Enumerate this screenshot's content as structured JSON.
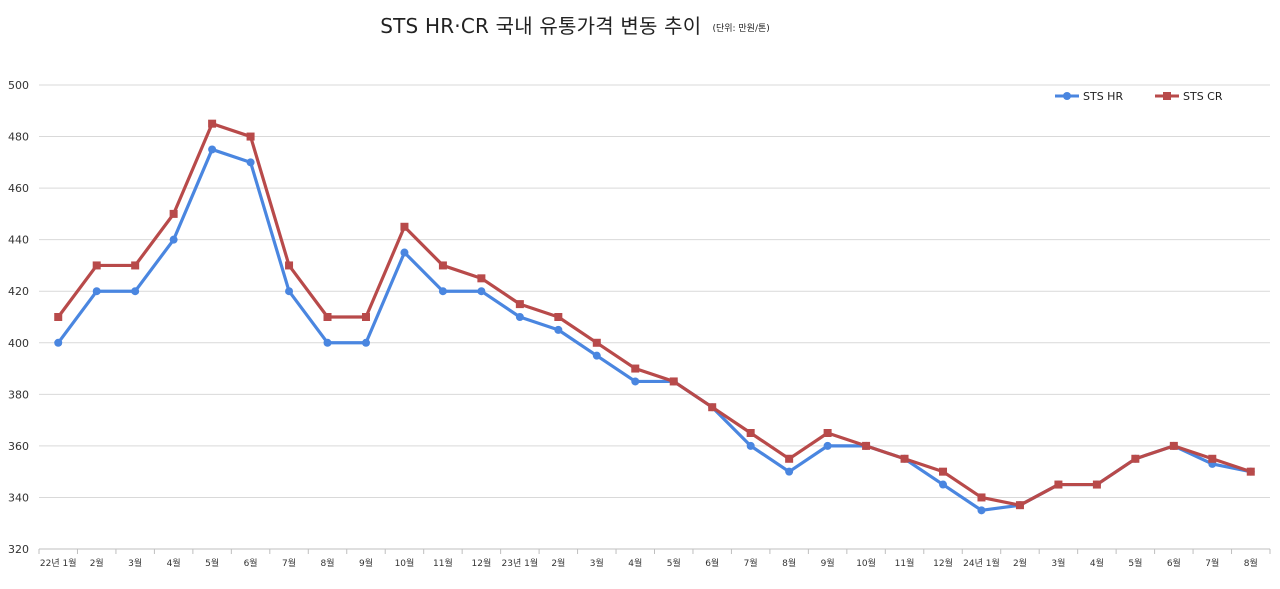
{
  "chart_data": {
    "type": "line",
    "title": "STS HR·CR  국내 유통가격 변동 추이",
    "subtitle": "(단위: 만원/톤)",
    "xlabel": "",
    "ylabel": "",
    "ylim": [
      320,
      500
    ],
    "yticks": [
      320,
      340,
      360,
      380,
      400,
      420,
      440,
      460,
      480,
      500
    ],
    "grid": true,
    "legend_position": "top-right",
    "categories": [
      "22년 1월",
      "2월",
      "3월",
      "4월",
      "5월",
      "6월",
      "7월",
      "8월",
      "9월",
      "10월",
      "11월",
      "12월",
      "23년 1월",
      "2월",
      "3월",
      "4월",
      "5월",
      "6월",
      "7월",
      "8월",
      "9월",
      "10월",
      "11월",
      "12월",
      "24년 1월",
      "2월",
      "3월",
      "4월",
      "5월",
      "6월",
      "7월",
      "8월"
    ],
    "series": [
      {
        "name": "STS HR",
        "color": "#4a86e0",
        "marker": "circle",
        "values": [
          400,
          420,
          420,
          440,
          475,
          470,
          420,
          400,
          400,
          435,
          420,
          420,
          410,
          405,
          395,
          385,
          385,
          375,
          360,
          350,
          360,
          360,
          355,
          345,
          335,
          337,
          345,
          345,
          355,
          360,
          353,
          350
        ]
      },
      {
        "name": "STS CR",
        "color": "#b84a4a",
        "marker": "square",
        "values": [
          410,
          430,
          430,
          450,
          485,
          480,
          430,
          410,
          410,
          445,
          430,
          425,
          415,
          410,
          400,
          390,
          385,
          375,
          365,
          355,
          365,
          360,
          355,
          350,
          340,
          337,
          345,
          345,
          355,
          360,
          355,
          350
        ]
      }
    ]
  }
}
